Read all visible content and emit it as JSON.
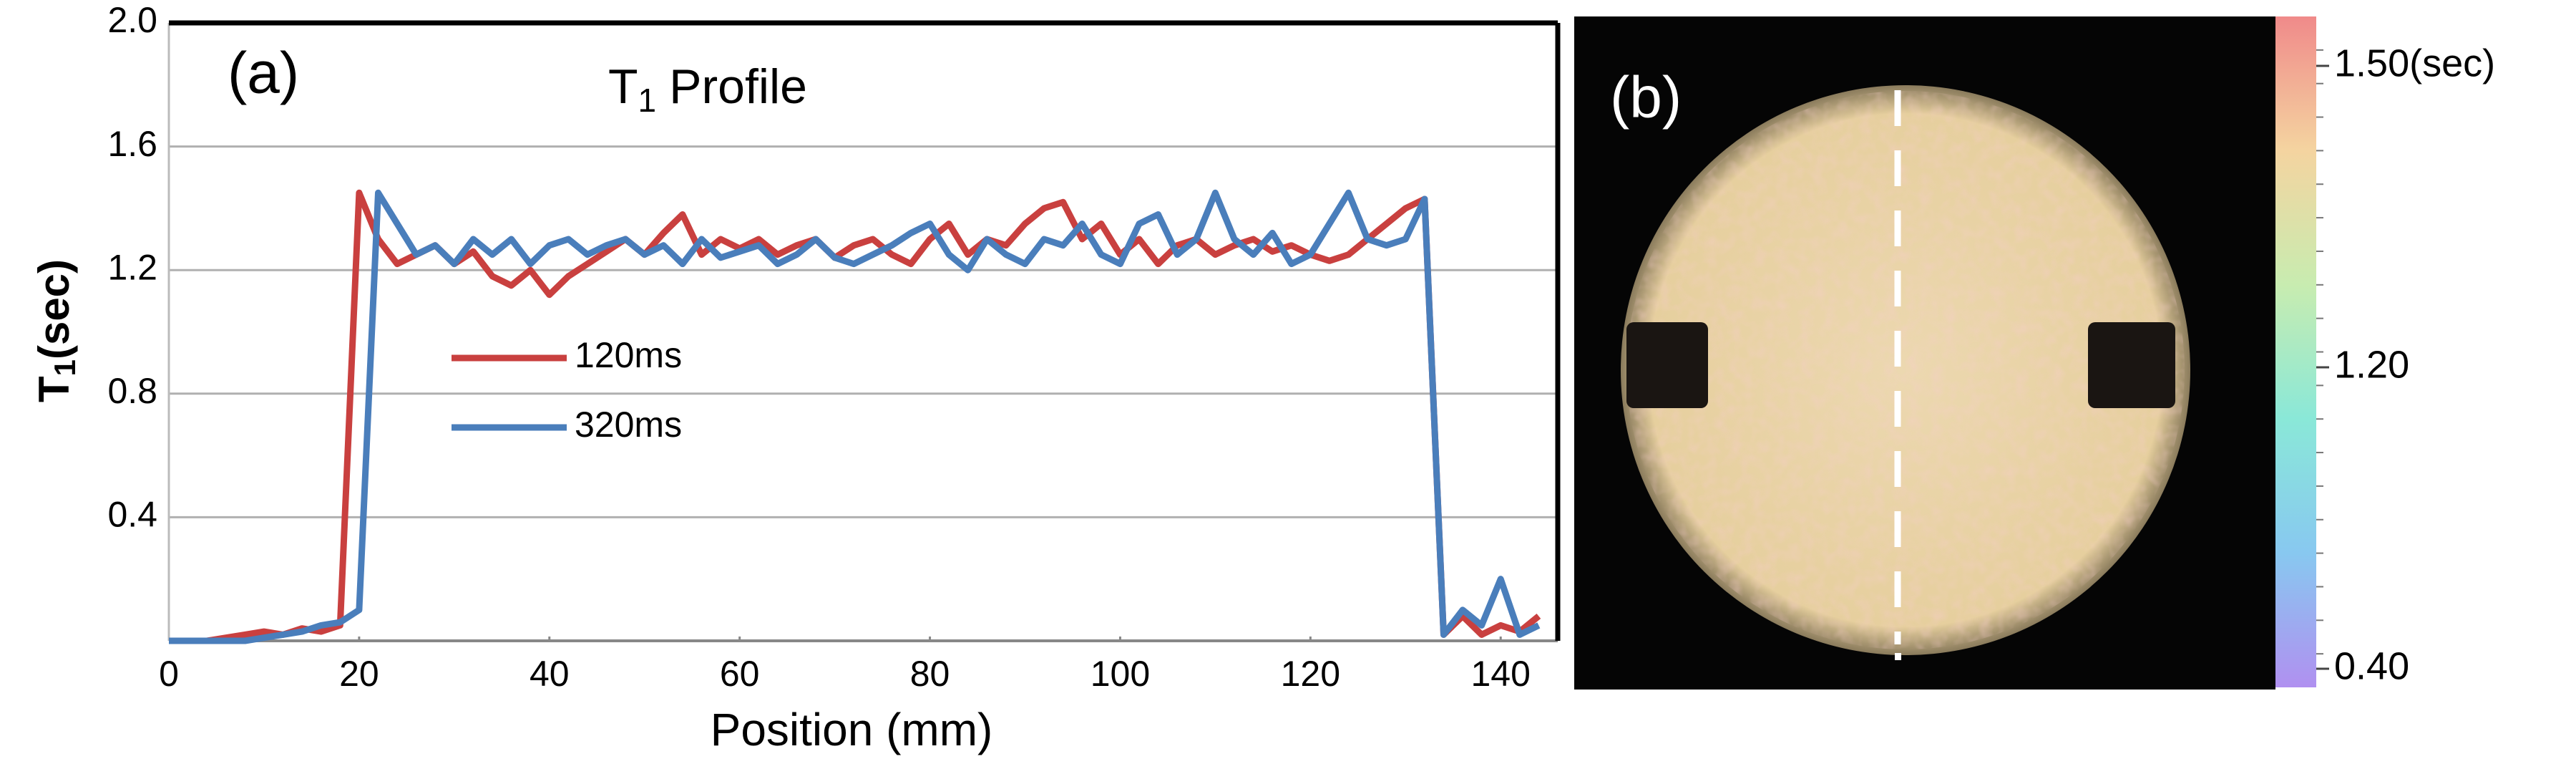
{
  "chart_data": [
    {
      "type": "line",
      "panel_label": "(a)",
      "title": {
        "main": "T",
        "subscript": "1",
        "rest": "Profile"
      },
      "xlabel": "Position (mm)",
      "ylabel": {
        "main": "T",
        "subscript": "1",
        "rest": "(sec)"
      },
      "xlim": [
        0,
        146
      ],
      "ylim": [
        0,
        2
      ],
      "xticks": [
        0,
        20,
        40,
        60,
        80,
        100,
        120,
        140
      ],
      "yticks": [
        0.4,
        0.8,
        1.2,
        1.6,
        {
          "value": 2,
          "label": "2.0"
        }
      ],
      "grid": true,
      "x": [
        0,
        2,
        4,
        6,
        8,
        10,
        12,
        14,
        16,
        18,
        20,
        22,
        24,
        26,
        28,
        30,
        32,
        34,
        36,
        38,
        40,
        42,
        44,
        46,
        48,
        50,
        52,
        54,
        56,
        58,
        60,
        62,
        64,
        66,
        68,
        70,
        72,
        74,
        76,
        78,
        80,
        82,
        84,
        86,
        88,
        90,
        92,
        94,
        96,
        98,
        100,
        102,
        104,
        106,
        108,
        110,
        112,
        114,
        116,
        118,
        120,
        122,
        124,
        126,
        128,
        130,
        132,
        134,
        136,
        138,
        140,
        142,
        144
      ],
      "series": [
        {
          "name": "120ms",
          "color": "#c9403f",
          "values": [
            0,
            0,
            0,
            0.01,
            0.02,
            0.03,
            0.02,
            0.04,
            0.03,
            0.05,
            1.45,
            1.3,
            1.22,
            1.25,
            1.28,
            1.22,
            1.26,
            1.18,
            1.15,
            1.2,
            1.12,
            1.18,
            1.22,
            1.26,
            1.3,
            1.25,
            1.32,
            1.38,
            1.25,
            1.3,
            1.27,
            1.3,
            1.25,
            1.28,
            1.3,
            1.24,
            1.28,
            1.3,
            1.25,
            1.22,
            1.3,
            1.35,
            1.25,
            1.3,
            1.28,
            1.35,
            1.4,
            1.42,
            1.3,
            1.35,
            1.25,
            1.3,
            1.22,
            1.28,
            1.3,
            1.25,
            1.28,
            1.3,
            1.26,
            1.28,
            1.25,
            1.23,
            1.25,
            1.3,
            1.35,
            1.4,
            1.43,
            0.02,
            0.08,
            0.02,
            0.05,
            0.03,
            0.08
          ]
        },
        {
          "name": "320ms",
          "color": "#4a7ebb",
          "values": [
            0,
            0,
            0,
            0,
            0,
            0.01,
            0.02,
            0.03,
            0.05,
            0.06,
            0.1,
            1.45,
            1.35,
            1.25,
            1.28,
            1.22,
            1.3,
            1.25,
            1.3,
            1.22,
            1.28,
            1.3,
            1.25,
            1.28,
            1.3,
            1.25,
            1.28,
            1.22,
            1.3,
            1.24,
            1.26,
            1.28,
            1.22,
            1.25,
            1.3,
            1.24,
            1.22,
            1.25,
            1.28,
            1.32,
            1.35,
            1.25,
            1.2,
            1.3,
            1.25,
            1.22,
            1.3,
            1.28,
            1.35,
            1.25,
            1.22,
            1.35,
            1.38,
            1.25,
            1.3,
            1.45,
            1.3,
            1.25,
            1.32,
            1.22,
            1.25,
            1.35,
            1.45,
            1.3,
            1.28,
            1.3,
            1.43,
            0.02,
            0.1,
            0.05,
            0.2,
            0.02,
            0.05
          ]
        }
      ]
    },
    {
      "type": "image",
      "panel_label": "(b)",
      "colorbar": {
        "colors": [
          "#f08a8a",
          "#f4d4a0",
          "#c8ecb0",
          "#8ae8d8",
          "#88c8f0",
          "#b090f0"
        ],
        "ticks": [
          {
            "value": 1.5,
            "label": "1.50(sec)"
          },
          {
            "value": 1.2,
            "label": "1.20"
          },
          {
            "value": 0.4,
            "label": "0.40"
          }
        ]
      }
    }
  ]
}
